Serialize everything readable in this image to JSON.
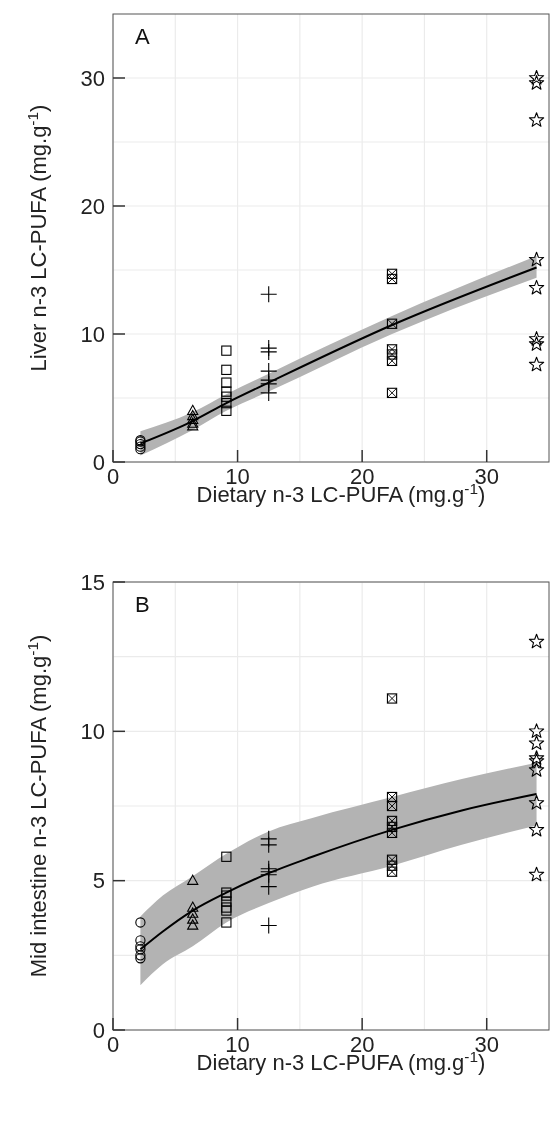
{
  "chart_data": [
    {
      "type": "scatter",
      "xlabel": "Dietary n-3 LC-PUFA (mg.g$^{-1}$)",
      "ylabel": "Liver n-3 LC-PUFA (mg.g$^{-1}$)",
      "annotations": [
        "A"
      ],
      "xlim": [
        0,
        35
      ],
      "ylim": [
        0,
        35
      ],
      "xticks": [
        0,
        10,
        20,
        30
      ],
      "yticks": [
        0,
        10,
        20,
        30
      ],
      "grid": true,
      "series": [
        {
          "type": "scatter",
          "marker": "circle",
          "color": "#000000",
          "x": [
            2.2,
            2.2,
            2.2,
            2.2,
            2.2
          ],
          "values": [
            1.0,
            1.2,
            1.4,
            1.6,
            1.7
          ]
        },
        {
          "type": "scatter",
          "marker": "triangle",
          "color": "#000000",
          "x": [
            6.4,
            6.4,
            6.4,
            6.4,
            6.4
          ],
          "values": [
            2.8,
            3.0,
            3.3,
            3.6,
            4.0
          ]
        },
        {
          "type": "scatter",
          "marker": "square",
          "color": "#000000",
          "x": [
            9.1,
            9.1,
            9.1,
            9.1,
            9.1,
            9.1,
            9.1
          ],
          "values": [
            8.7,
            7.2,
            6.2,
            5.5,
            5.1,
            4.6,
            4.0
          ]
        },
        {
          "type": "scatter",
          "marker": "cross",
          "color": "#000000",
          "x": [
            12.5,
            12.5,
            12.5,
            12.5,
            12.5,
            12.5,
            12.5
          ],
          "values": [
            13.1,
            8.9,
            8.6,
            7.1,
            6.4,
            6.1,
            5.4
          ]
        },
        {
          "type": "scatter",
          "marker": "square-x",
          "color": "#000000",
          "x": [
            22.4,
            22.4,
            22.4,
            22.4,
            22.4,
            22.4,
            22.4
          ],
          "values": [
            14.7,
            14.3,
            10.8,
            8.8,
            8.4,
            7.9,
            5.4
          ]
        },
        {
          "type": "scatter",
          "marker": "star",
          "color": "#000000",
          "x": [
            34,
            34,
            34,
            34,
            34,
            34,
            34,
            34
          ],
          "values": [
            30.0,
            29.6,
            26.7,
            15.8,
            13.6,
            9.6,
            9.2,
            7.6
          ]
        },
        {
          "type": "line",
          "marker": "none",
          "color": "#000000",
          "x": [
            2.2,
            6.4,
            9.1,
            12.5,
            22.4,
            34
          ],
          "values": [
            1.45,
            3.2,
            4.6,
            6.2,
            10.7,
            15.2
          ],
          "lower": [
            0.5,
            2.5,
            4.0,
            5.5,
            10.0,
            14.4
          ],
          "upper": [
            2.4,
            3.9,
            5.3,
            6.9,
            11.4,
            16.1
          ]
        }
      ]
    },
    {
      "type": "scatter",
      "xlabel": "Dietary n-3 LC-PUFA (mg.g$^{-1}$)",
      "ylabel": "Mid intestine n-3 LC-PUFA (mg.g$^{-1}$)",
      "annotations": [
        "B"
      ],
      "xlim": [
        0,
        35
      ],
      "ylim": [
        0,
        15
      ],
      "xticks": [
        0,
        10,
        20,
        30
      ],
      "yticks": [
        0,
        5,
        10,
        15
      ],
      "grid": true,
      "series": [
        {
          "type": "scatter",
          "marker": "circle",
          "color": "#000000",
          "x": [
            2.2,
            2.2,
            2.2,
            2.2,
            2.2,
            2.2
          ],
          "values": [
            3.6,
            3.0,
            2.8,
            2.7,
            2.5,
            2.4
          ]
        },
        {
          "type": "scatter",
          "marker": "triangle",
          "color": "#000000",
          "x": [
            6.4,
            6.4,
            6.4,
            6.4,
            6.4
          ],
          "values": [
            5.0,
            4.1,
            3.9,
            3.7,
            3.5
          ]
        },
        {
          "type": "scatter",
          "marker": "square",
          "color": "#000000",
          "x": [
            9.1,
            9.1,
            9.1,
            9.1,
            9.1,
            9.1,
            9.1
          ],
          "values": [
            5.8,
            4.6,
            4.5,
            4.3,
            4.1,
            4.0,
            3.6
          ]
        },
        {
          "type": "scatter",
          "marker": "cross",
          "color": "#000000",
          "x": [
            12.5,
            12.5,
            12.5,
            12.5,
            12.5,
            12.5,
            12.5
          ],
          "values": [
            6.4,
            6.2,
            5.4,
            5.3,
            5.2,
            4.8,
            3.5
          ]
        },
        {
          "type": "scatter",
          "marker": "square-x",
          "color": "#000000",
          "x": [
            22.4,
            22.4,
            22.4,
            22.4,
            22.4,
            22.4,
            22.4,
            22.4,
            22.4
          ],
          "values": [
            11.1,
            7.8,
            7.5,
            7.0,
            6.8,
            6.6,
            5.7,
            5.5,
            5.3
          ]
        },
        {
          "type": "scatter",
          "marker": "star",
          "color": "#000000",
          "x": [
            34,
            34,
            34,
            34,
            34,
            34,
            34,
            34,
            34
          ],
          "values": [
            13.0,
            10.0,
            9.6,
            9.1,
            9.0,
            8.7,
            7.6,
            6.7,
            5.2
          ]
        },
        {
          "type": "line",
          "marker": "none",
          "color": "#000000",
          "x": [
            2.2,
            4,
            6.4,
            9.1,
            12.5,
            16,
            22.4,
            28,
            34
          ],
          "values": [
            2.7,
            3.3,
            4.0,
            4.6,
            5.25,
            5.8,
            6.7,
            7.35,
            7.9
          ],
          "lower": [
            1.5,
            2.2,
            2.8,
            3.6,
            4.25,
            4.8,
            5.5,
            6.2,
            6.85
          ],
          "upper": [
            3.8,
            4.5,
            5.15,
            5.9,
            6.65,
            7.1,
            7.8,
            8.4,
            8.95
          ]
        }
      ]
    }
  ]
}
